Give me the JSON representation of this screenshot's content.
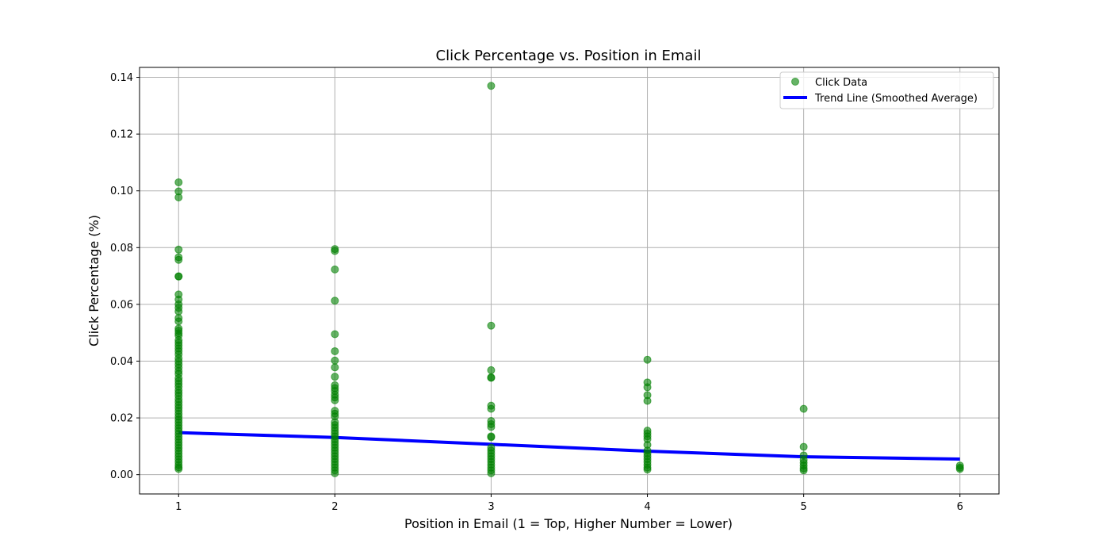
{
  "chart_data": {
    "type": "scatter",
    "title": "Click Percentage vs. Position in Email",
    "xlabel": "Position in Email (1 = Top, Higher Number = Lower)",
    "ylabel": "Click Percentage (%)",
    "xlim": [
      0.75,
      6.25
    ],
    "ylim": [
      -0.0068,
      0.1435
    ],
    "xticks": [
      1,
      2,
      3,
      4,
      5,
      6
    ],
    "yticks": [
      0.0,
      0.02,
      0.04,
      0.06,
      0.08,
      0.1,
      0.12,
      0.14
    ],
    "ytick_labels": [
      "0.00",
      "0.02",
      "0.04",
      "0.06",
      "0.08",
      "0.10",
      "0.12",
      "0.14"
    ],
    "grid": true,
    "legend_position": "top-right",
    "colors": {
      "points": "#008000",
      "trend": "#0000ff",
      "grid": "#b0b0b0"
    },
    "series": [
      {
        "name": "Click Data",
        "kind": "scatter",
        "points": [
          [
            1,
            0.103
          ],
          [
            1,
            0.0998
          ],
          [
            1,
            0.0977
          ],
          [
            1,
            0.0793
          ],
          [
            1,
            0.0766
          ],
          [
            1,
            0.0757
          ],
          [
            1,
            0.0699
          ],
          [
            1,
            0.0698
          ],
          [
            1,
            0.0635
          ],
          [
            1,
            0.0617
          ],
          [
            1,
            0.06
          ],
          [
            1,
            0.0588
          ],
          [
            1,
            0.0575
          ],
          [
            1,
            0.0552
          ],
          [
            1,
            0.054
          ],
          [
            1,
            0.0515
          ],
          [
            1,
            0.0507
          ],
          [
            1,
            0.0498
          ],
          [
            1,
            0.049
          ],
          [
            1,
            0.0474
          ],
          [
            1,
            0.0465
          ],
          [
            1,
            0.0455
          ],
          [
            1,
            0.0445
          ],
          [
            1,
            0.0435
          ],
          [
            1,
            0.0424
          ],
          [
            1,
            0.041
          ],
          [
            1,
            0.0399
          ],
          [
            1,
            0.0388
          ],
          [
            1,
            0.0377
          ],
          [
            1,
            0.0365
          ],
          [
            1,
            0.0355
          ],
          [
            1,
            0.034
          ],
          [
            1,
            0.033
          ],
          [
            1,
            0.032
          ],
          [
            1,
            0.031
          ],
          [
            1,
            0.0298
          ],
          [
            1,
            0.0288
          ],
          [
            1,
            0.0278
          ],
          [
            1,
            0.0266
          ],
          [
            1,
            0.0256
          ],
          [
            1,
            0.0245
          ],
          [
            1,
            0.0235
          ],
          [
            1,
            0.0225
          ],
          [
            1,
            0.0214
          ],
          [
            1,
            0.0204
          ],
          [
            1,
            0.0194
          ],
          [
            1,
            0.0184
          ],
          [
            1,
            0.0174
          ],
          [
            1,
            0.0164
          ],
          [
            1,
            0.0154
          ],
          [
            1,
            0.0144
          ],
          [
            1,
            0.0134
          ],
          [
            1,
            0.0124
          ],
          [
            1,
            0.0114
          ],
          [
            1,
            0.0104
          ],
          [
            1,
            0.0094
          ],
          [
            1,
            0.0084
          ],
          [
            1,
            0.0074
          ],
          [
            1,
            0.0064
          ],
          [
            1,
            0.0054
          ],
          [
            1,
            0.0044
          ],
          [
            1,
            0.0034
          ],
          [
            1,
            0.0026
          ],
          [
            1,
            0.002
          ],
          [
            2,
            0.0795
          ],
          [
            2,
            0.0788
          ],
          [
            2,
            0.0723
          ],
          [
            2,
            0.0613
          ],
          [
            2,
            0.0495
          ],
          [
            2,
            0.0435
          ],
          [
            2,
            0.0402
          ],
          [
            2,
            0.0378
          ],
          [
            2,
            0.0345
          ],
          [
            2,
            0.0315
          ],
          [
            2,
            0.0305
          ],
          [
            2,
            0.0295
          ],
          [
            2,
            0.0282
          ],
          [
            2,
            0.0272
          ],
          [
            2,
            0.0262
          ],
          [
            2,
            0.0225
          ],
          [
            2,
            0.0215
          ],
          [
            2,
            0.0205
          ],
          [
            2,
            0.0185
          ],
          [
            2,
            0.0175
          ],
          [
            2,
            0.0165
          ],
          [
            2,
            0.0155
          ],
          [
            2,
            0.0145
          ],
          [
            2,
            0.0135
          ],
          [
            2,
            0.0125
          ],
          [
            2,
            0.0115
          ],
          [
            2,
            0.0105
          ],
          [
            2,
            0.0095
          ],
          [
            2,
            0.0085
          ],
          [
            2,
            0.0075
          ],
          [
            2,
            0.0065
          ],
          [
            2,
            0.0055
          ],
          [
            2,
            0.0045
          ],
          [
            2,
            0.0035
          ],
          [
            2,
            0.0025
          ],
          [
            2,
            0.0015
          ],
          [
            2,
            0.0005
          ],
          [
            3,
            0.137
          ],
          [
            3,
            0.0525
          ],
          [
            3,
            0.0368
          ],
          [
            3,
            0.0343
          ],
          [
            3,
            0.0341
          ],
          [
            3,
            0.0243
          ],
          [
            3,
            0.0232
          ],
          [
            3,
            0.0189
          ],
          [
            3,
            0.0178
          ],
          [
            3,
            0.0168
          ],
          [
            3,
            0.0135
          ],
          [
            3,
            0.0132
          ],
          [
            3,
            0.0095
          ],
          [
            3,
            0.0085
          ],
          [
            3,
            0.0075
          ],
          [
            3,
            0.0065
          ],
          [
            3,
            0.0055
          ],
          [
            3,
            0.0045
          ],
          [
            3,
            0.0035
          ],
          [
            3,
            0.0025
          ],
          [
            3,
            0.0015
          ],
          [
            3,
            0.0005
          ],
          [
            4,
            0.0405
          ],
          [
            4,
            0.0325
          ],
          [
            4,
            0.0308
          ],
          [
            4,
            0.028
          ],
          [
            4,
            0.026
          ],
          [
            4,
            0.0155
          ],
          [
            4,
            0.0145
          ],
          [
            4,
            0.0135
          ],
          [
            4,
            0.0125
          ],
          [
            4,
            0.0105
          ],
          [
            4,
            0.0085
          ],
          [
            4,
            0.0075
          ],
          [
            4,
            0.0065
          ],
          [
            4,
            0.0055
          ],
          [
            4,
            0.0045
          ],
          [
            4,
            0.0035
          ],
          [
            4,
            0.0025
          ],
          [
            4,
            0.0018
          ],
          [
            5,
            0.0232
          ],
          [
            5,
            0.0098
          ],
          [
            5,
            0.0068
          ],
          [
            5,
            0.0052
          ],
          [
            5,
            0.0042
          ],
          [
            5,
            0.0032
          ],
          [
            5,
            0.0022
          ],
          [
            5,
            0.0015
          ],
          [
            6,
            0.0032
          ],
          [
            6,
            0.0025
          ],
          [
            6,
            0.002
          ]
        ]
      },
      {
        "name": "Trend Line (Smoothed Average)",
        "kind": "line",
        "x": [
          1,
          2,
          3,
          4,
          5,
          6
        ],
        "y": [
          0.0148,
          0.0131,
          0.0107,
          0.0083,
          0.0063,
          0.0055
        ]
      }
    ]
  }
}
